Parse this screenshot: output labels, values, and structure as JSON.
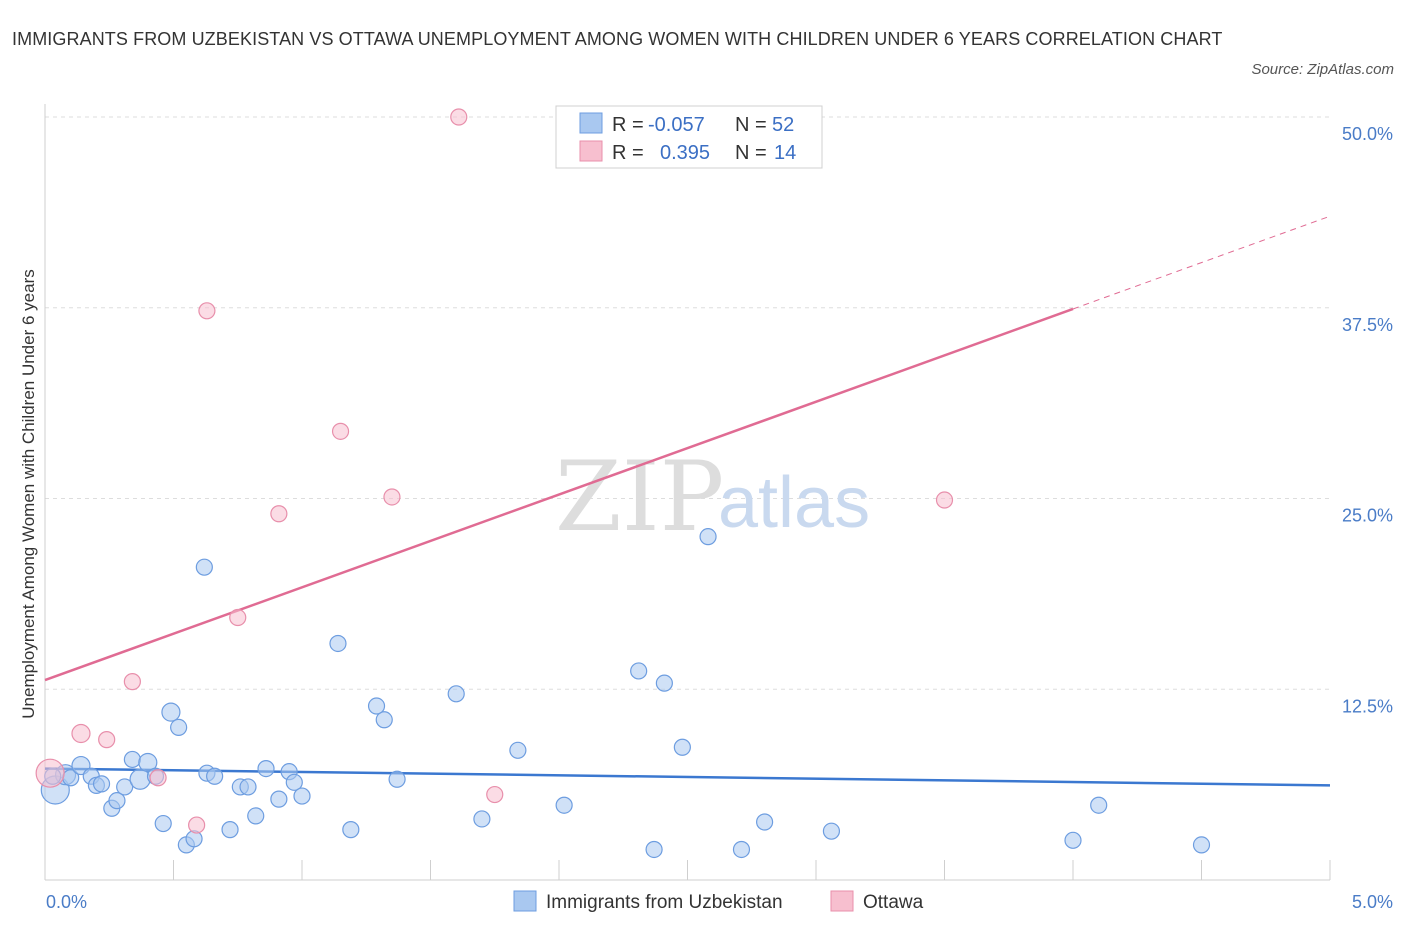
{
  "header": {
    "title": "IMMIGRANTS FROM UZBEKISTAN VS OTTAWA UNEMPLOYMENT AMONG WOMEN WITH CHILDREN UNDER 6 YEARS CORRELATION CHART",
    "source": "Source: ZipAtlas.com"
  },
  "watermark": {
    "zip": "ZIP",
    "atlas": "atlas"
  },
  "legend": {
    "r_label": "R =",
    "n_label": "N =",
    "entries": [
      {
        "r": "-0.057",
        "n": "52"
      },
      {
        "r": "0.395",
        "n": "14"
      }
    ]
  },
  "colors": {
    "blue_fill": "#a9c8f0",
    "blue_stroke": "#6d9de0",
    "blue_line": "#3b78d0",
    "pink_fill": "#f7bfcf",
    "pink_stroke": "#e88fab",
    "pink_line": "#e06b93",
    "grid": "#dddddd",
    "tick_label": "#4a7cc7"
  },
  "chart_data": {
    "type": "scatter",
    "title": "IMMIGRANTS FROM UZBEKISTAN VS OTTAWA UNEMPLOYMENT AMONG WOMEN WITH CHILDREN UNDER 6 YEARS CORRELATION CHART",
    "xlabel": "",
    "ylabel": "Unemployment Among Women with Children Under 6 years",
    "xlim": [
      0,
      5
    ],
    "ylim": [
      0,
      50
    ],
    "x_tick_labels": [
      "0.0%",
      "5.0%"
    ],
    "y_tick_labels": [
      "12.5%",
      "25.0%",
      "37.5%",
      "50.0%"
    ],
    "y_ticks": [
      12.5,
      25,
      37.5,
      50
    ],
    "grid": true,
    "legend_position": "top-center",
    "series": [
      {
        "name": "Immigrants from Uzbekistan",
        "r": -0.057,
        "n": 52,
        "trend": {
          "x": [
            0,
            5
          ],
          "y": [
            7.3,
            6.2
          ]
        },
        "points": [
          [
            0.04,
            5.9,
            14
          ],
          [
            0.08,
            6.9,
            10
          ],
          [
            0.1,
            6.7,
            8
          ],
          [
            0.14,
            7.5,
            9
          ],
          [
            0.18,
            6.8,
            8
          ],
          [
            0.2,
            6.2,
            8
          ],
          [
            0.22,
            6.3,
            8
          ],
          [
            0.26,
            4.7,
            8
          ],
          [
            0.28,
            5.2,
            8
          ],
          [
            0.31,
            6.1,
            8
          ],
          [
            0.34,
            7.9,
            8
          ],
          [
            0.37,
            6.6,
            10
          ],
          [
            0.4,
            7.7,
            9
          ],
          [
            0.43,
            6.8,
            8
          ],
          [
            0.46,
            3.7,
            8
          ],
          [
            0.49,
            11.0,
            9
          ],
          [
            0.52,
            10.0,
            8
          ],
          [
            0.55,
            2.3,
            8
          ],
          [
            0.58,
            2.7,
            8
          ],
          [
            0.62,
            20.5,
            8
          ],
          [
            0.63,
            7.0,
            8
          ],
          [
            0.66,
            6.8,
            8
          ],
          [
            0.72,
            3.3,
            8
          ],
          [
            0.76,
            6.1,
            8
          ],
          [
            0.79,
            6.1,
            8
          ],
          [
            0.82,
            4.2,
            8
          ],
          [
            0.86,
            7.3,
            8
          ],
          [
            0.91,
            5.3,
            8
          ],
          [
            0.95,
            7.1,
            8
          ],
          [
            0.97,
            6.4,
            8
          ],
          [
            1.0,
            5.5,
            8
          ],
          [
            1.14,
            15.5,
            8
          ],
          [
            1.19,
            3.3,
            8
          ],
          [
            1.29,
            11.4,
            8
          ],
          [
            1.32,
            10.5,
            8
          ],
          [
            1.37,
            6.6,
            8
          ],
          [
            1.6,
            12.2,
            8
          ],
          [
            1.7,
            4.0,
            8
          ],
          [
            1.84,
            8.5,
            8
          ],
          [
            2.02,
            4.9,
            8
          ],
          [
            2.31,
            13.7,
            8
          ],
          [
            2.37,
            2.0,
            8
          ],
          [
            2.41,
            12.9,
            8
          ],
          [
            2.48,
            8.7,
            8
          ],
          [
            2.58,
            22.5,
            8
          ],
          [
            2.71,
            2.0,
            8
          ],
          [
            2.8,
            3.8,
            8
          ],
          [
            3.06,
            3.2,
            8
          ],
          [
            4.0,
            2.6,
            8
          ],
          [
            4.1,
            4.9,
            8
          ],
          [
            4.5,
            2.3,
            8
          ],
          [
            0.03,
            6.8,
            8
          ]
        ]
      },
      {
        "name": "Ottawa",
        "r": 0.395,
        "n": 14,
        "trend": {
          "x": [
            0,
            5
          ],
          "y": [
            13.1,
            43.5
          ],
          "solid_until_x": 4.0
        },
        "points": [
          [
            0.02,
            7.0,
            14
          ],
          [
            0.14,
            9.6,
            9
          ],
          [
            0.24,
            9.2,
            8
          ],
          [
            0.34,
            13.0,
            8
          ],
          [
            0.44,
            6.7,
            8
          ],
          [
            0.59,
            3.6,
            8
          ],
          [
            0.63,
            37.3,
            8
          ],
          [
            0.75,
            17.2,
            8
          ],
          [
            0.91,
            24.0,
            8
          ],
          [
            1.15,
            29.4,
            8
          ],
          [
            1.35,
            25.1,
            8
          ],
          [
            1.61,
            50.0,
            8
          ],
          [
            1.75,
            5.6,
            8
          ],
          [
            3.5,
            24.9,
            8
          ]
        ]
      }
    ]
  }
}
